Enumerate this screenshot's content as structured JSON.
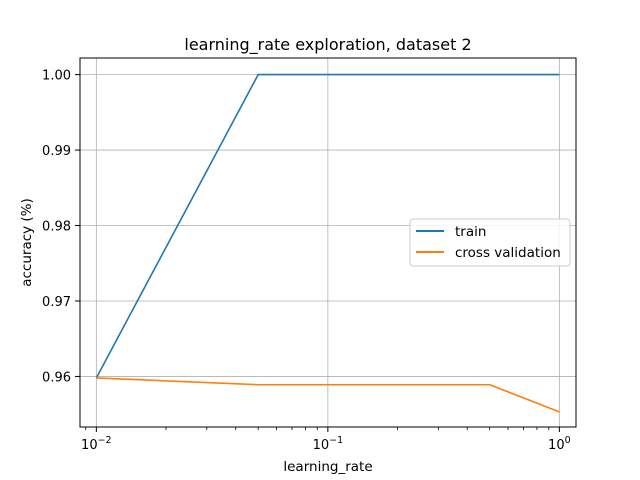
{
  "chart_data": {
    "type": "line",
    "title": "learning_rate exploration, dataset 2",
    "xlabel": "learning_rate",
    "ylabel": "accuracy (%)",
    "xscale": "log",
    "xlim": [
      0.0085,
      1.18
    ],
    "ylim": [
      0.9533,
      1.0022
    ],
    "x": [
      0.01,
      0.05,
      0.1,
      0.5,
      1.0
    ],
    "xticks": [
      {
        "value": 0.01,
        "base": "10",
        "exp": "−2"
      },
      {
        "value": 0.1,
        "base": "10",
        "exp": "−1"
      },
      {
        "value": 1.0,
        "base": "10",
        "exp": "0"
      }
    ],
    "yticks": [
      {
        "value": 0.96,
        "label": "0.96"
      },
      {
        "value": 0.97,
        "label": "0.97"
      },
      {
        "value": 0.98,
        "label": "0.98"
      },
      {
        "value": 0.99,
        "label": "0.99"
      },
      {
        "value": 1.0,
        "label": "1.00"
      }
    ],
    "grid": true,
    "legend_position": "center-right",
    "series": [
      {
        "name": "train",
        "color": "#1f77b4",
        "values": [
          0.9598,
          1.0,
          1.0,
          1.0,
          1.0
        ]
      },
      {
        "name": "cross validation",
        "color": "#ff7f0e",
        "values": [
          0.9598,
          0.9589,
          0.9589,
          0.9589,
          0.9553
        ]
      }
    ]
  }
}
